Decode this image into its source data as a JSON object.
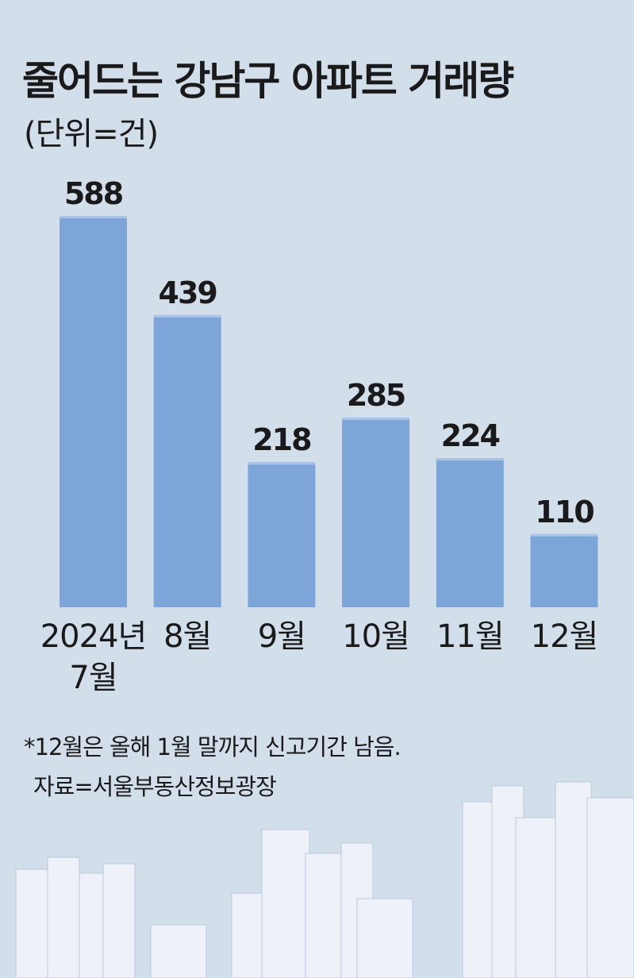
{
  "chart_data": {
    "type": "bar",
    "title": "줄어드는 강남구 아파트 거래량",
    "subtitle": "(단위=건)",
    "categories": [
      "2024년 7월",
      "8월",
      "9월",
      "10월",
      "11월",
      "12월"
    ],
    "values": [
      588,
      439,
      218,
      285,
      224,
      110
    ],
    "color": "#7ea5d7",
    "note": "*12월은 올해 1월 말까지 신고기간 남음.",
    "source": "자료=서울부동산정보광장"
  }
}
